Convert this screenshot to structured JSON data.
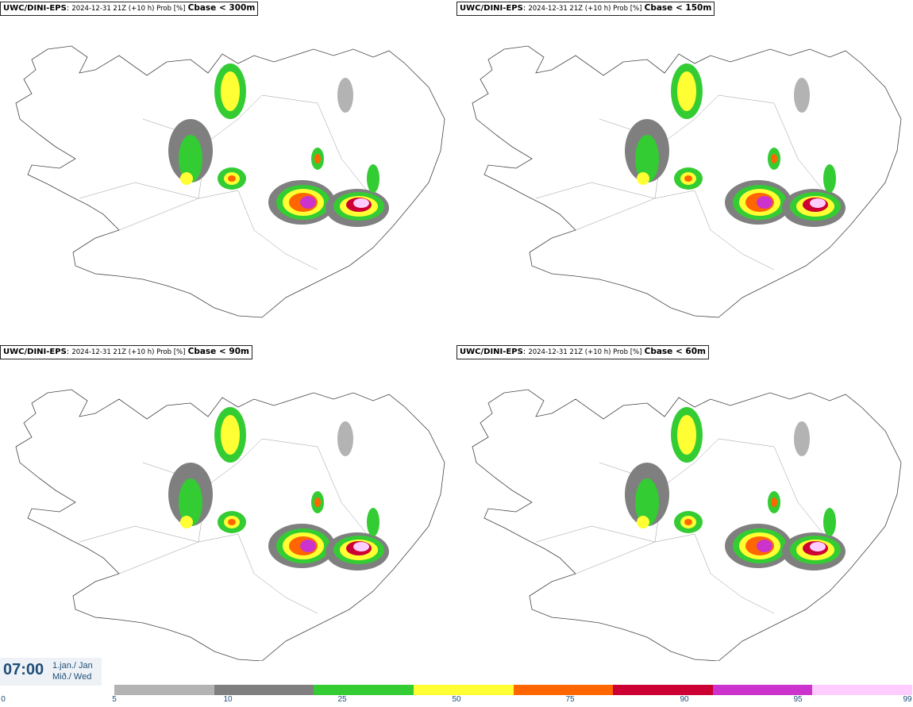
{
  "panels": [
    {
      "model": "UWC/DINI-EPS",
      "desc": "2024-12-31 21Z (+10 h) Prob [%]",
      "param": "Cbase < 300m"
    },
    {
      "model": "UWC/DINI-EPS",
      "desc": "2024-12-31 21Z (+10 h) Prob [%]",
      "param": "Cbase < 150m"
    },
    {
      "model": "UWC/DINI-EPS",
      "desc": "2024-12-31 21Z (+10 h) Prob [%]",
      "param": "Cbase < 90m"
    },
    {
      "model": "UWC/DINI-EPS",
      "desc": "2024-12-31 21Z (+10 h) Prob [%]",
      "param": "Cbase < 60m"
    }
  ],
  "time": {
    "clock": "07:00",
    "date_line1": "1.jan./ Jan",
    "date_line2": "Mið./ Wed"
  },
  "legend": {
    "ticks": [
      "0",
      "5",
      "10",
      "25",
      "50",
      "75",
      "90",
      "95",
      "99"
    ],
    "colors": [
      "#b3b3b3",
      "#7f7f7f",
      "#33cc33",
      "#ffff33",
      "#ff6600",
      "#cc0033",
      "#cc33cc",
      "#ffccff"
    ]
  }
}
